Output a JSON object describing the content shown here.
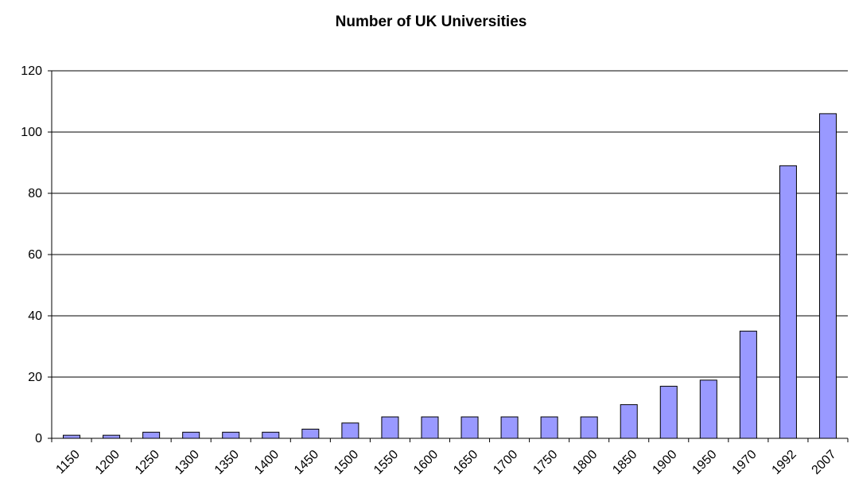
{
  "chart_data": {
    "type": "bar",
    "title": "Number of UK Universities",
    "categories": [
      "1150",
      "1200",
      "1250",
      "1300",
      "1350",
      "1400",
      "1450",
      "1500",
      "1550",
      "1600",
      "1650",
      "1700",
      "1750",
      "1800",
      "1850",
      "1900",
      "1950",
      "1970",
      "1992",
      "2007"
    ],
    "values": [
      1,
      1,
      2,
      2,
      2,
      2,
      3,
      5,
      7,
      7,
      7,
      7,
      7,
      7,
      11,
      17,
      19,
      35,
      89,
      106
    ],
    "color": "#9999ff",
    "ylim": [
      0,
      120
    ],
    "yticks": [
      0,
      20,
      40,
      60,
      80,
      100,
      120
    ],
    "grid": true
  }
}
